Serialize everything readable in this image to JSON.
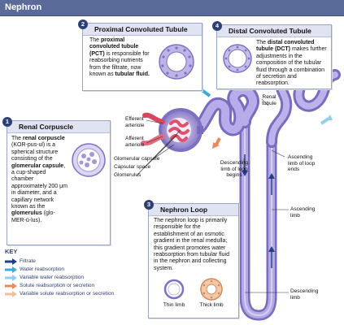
{
  "header": {
    "title": "Nephron"
  },
  "colors": {
    "tubule": "#a394d6",
    "tubule_dark": "#6e5fb0",
    "header_bg": "#5a6b9a",
    "badge": "#2e3f73",
    "filtrate_arrow": "#1f3f8a",
    "water_arrow": "#3fa9d9",
    "variable_water_arrow": "#8ed0ee",
    "solute_arrow": "#e98a5a",
    "variable_solute_arrow": "#f3bf9b"
  },
  "sections": {
    "proximal": {
      "number": "2",
      "title": "Proximal Convoluted Tubule",
      "text_1": "The",
      "text_bold": "proximal convoluted tubule (PCT)",
      "text_2": "is responsible for reabsorbing nutrients from the filtrate, now known as",
      "text_bold_2": "tubular fluid."
    },
    "distal": {
      "number": "4",
      "title": "Distal Convoluted Tubule",
      "text_1": "The",
      "text_bold": "distal convoluted tubule (DCT)",
      "text_2": "makes further adjustments in the composition of the tubular fluid through a combination of secretion and reabsorption."
    },
    "renal_corpuscle": {
      "number": "1",
      "title": "Renal Corpuscle",
      "text_1": "The",
      "text_bold": "renal corpuscle",
      "text_2": "(KOR-pus-ul) is a spherical structure consisting of the",
      "text_bold_2": "glomerular capsule",
      "text_3": ", a cup-shaped chamber approximately 200 μm in diameter, and a capillary network known as the",
      "text_bold_3": "glomerulus",
      "text_4": "(glo-MER-ū-lus)."
    },
    "loop": {
      "number": "3",
      "title": "Nephron Loop",
      "text": "The nephron loop is primarily responsible for the establishment of an osmotic gradient in the renal medulla; this gradient promotes water reabsorption from tubular fluid in the nephron and collecting system.",
      "thin_limb": "Thin limb",
      "thick_limb": "Thick limb"
    }
  },
  "labels": {
    "efferent": "Efferent arteriole",
    "afferent": "Afferent arteriole",
    "glomerular_capsule": "Glomerular capsule",
    "capsular_space": "Capsular space",
    "glomerulus": "Glomerulus",
    "renal_tubule": "Renal tubule",
    "descending_limb_begins": "Descending limb of loop begins",
    "ascending_limb_ends": "Ascending limb of loop ends",
    "ascending_limb": "Ascending limb",
    "descending_limb": "Descending limb"
  },
  "key": {
    "title": "KEY",
    "items": [
      {
        "label": "Filtrate",
        "color": "#1f3f8a"
      },
      {
        "label": "Water reabsorption",
        "color": "#3fa9d9"
      },
      {
        "label": "Variable water reabsorption",
        "color": "#8ed0ee"
      },
      {
        "label": "Solute reabsorption or secretion",
        "color": "#e98a5a"
      },
      {
        "label": "Variable solute reabsorption or secretion",
        "color": "#f3bf9b"
      }
    ]
  }
}
